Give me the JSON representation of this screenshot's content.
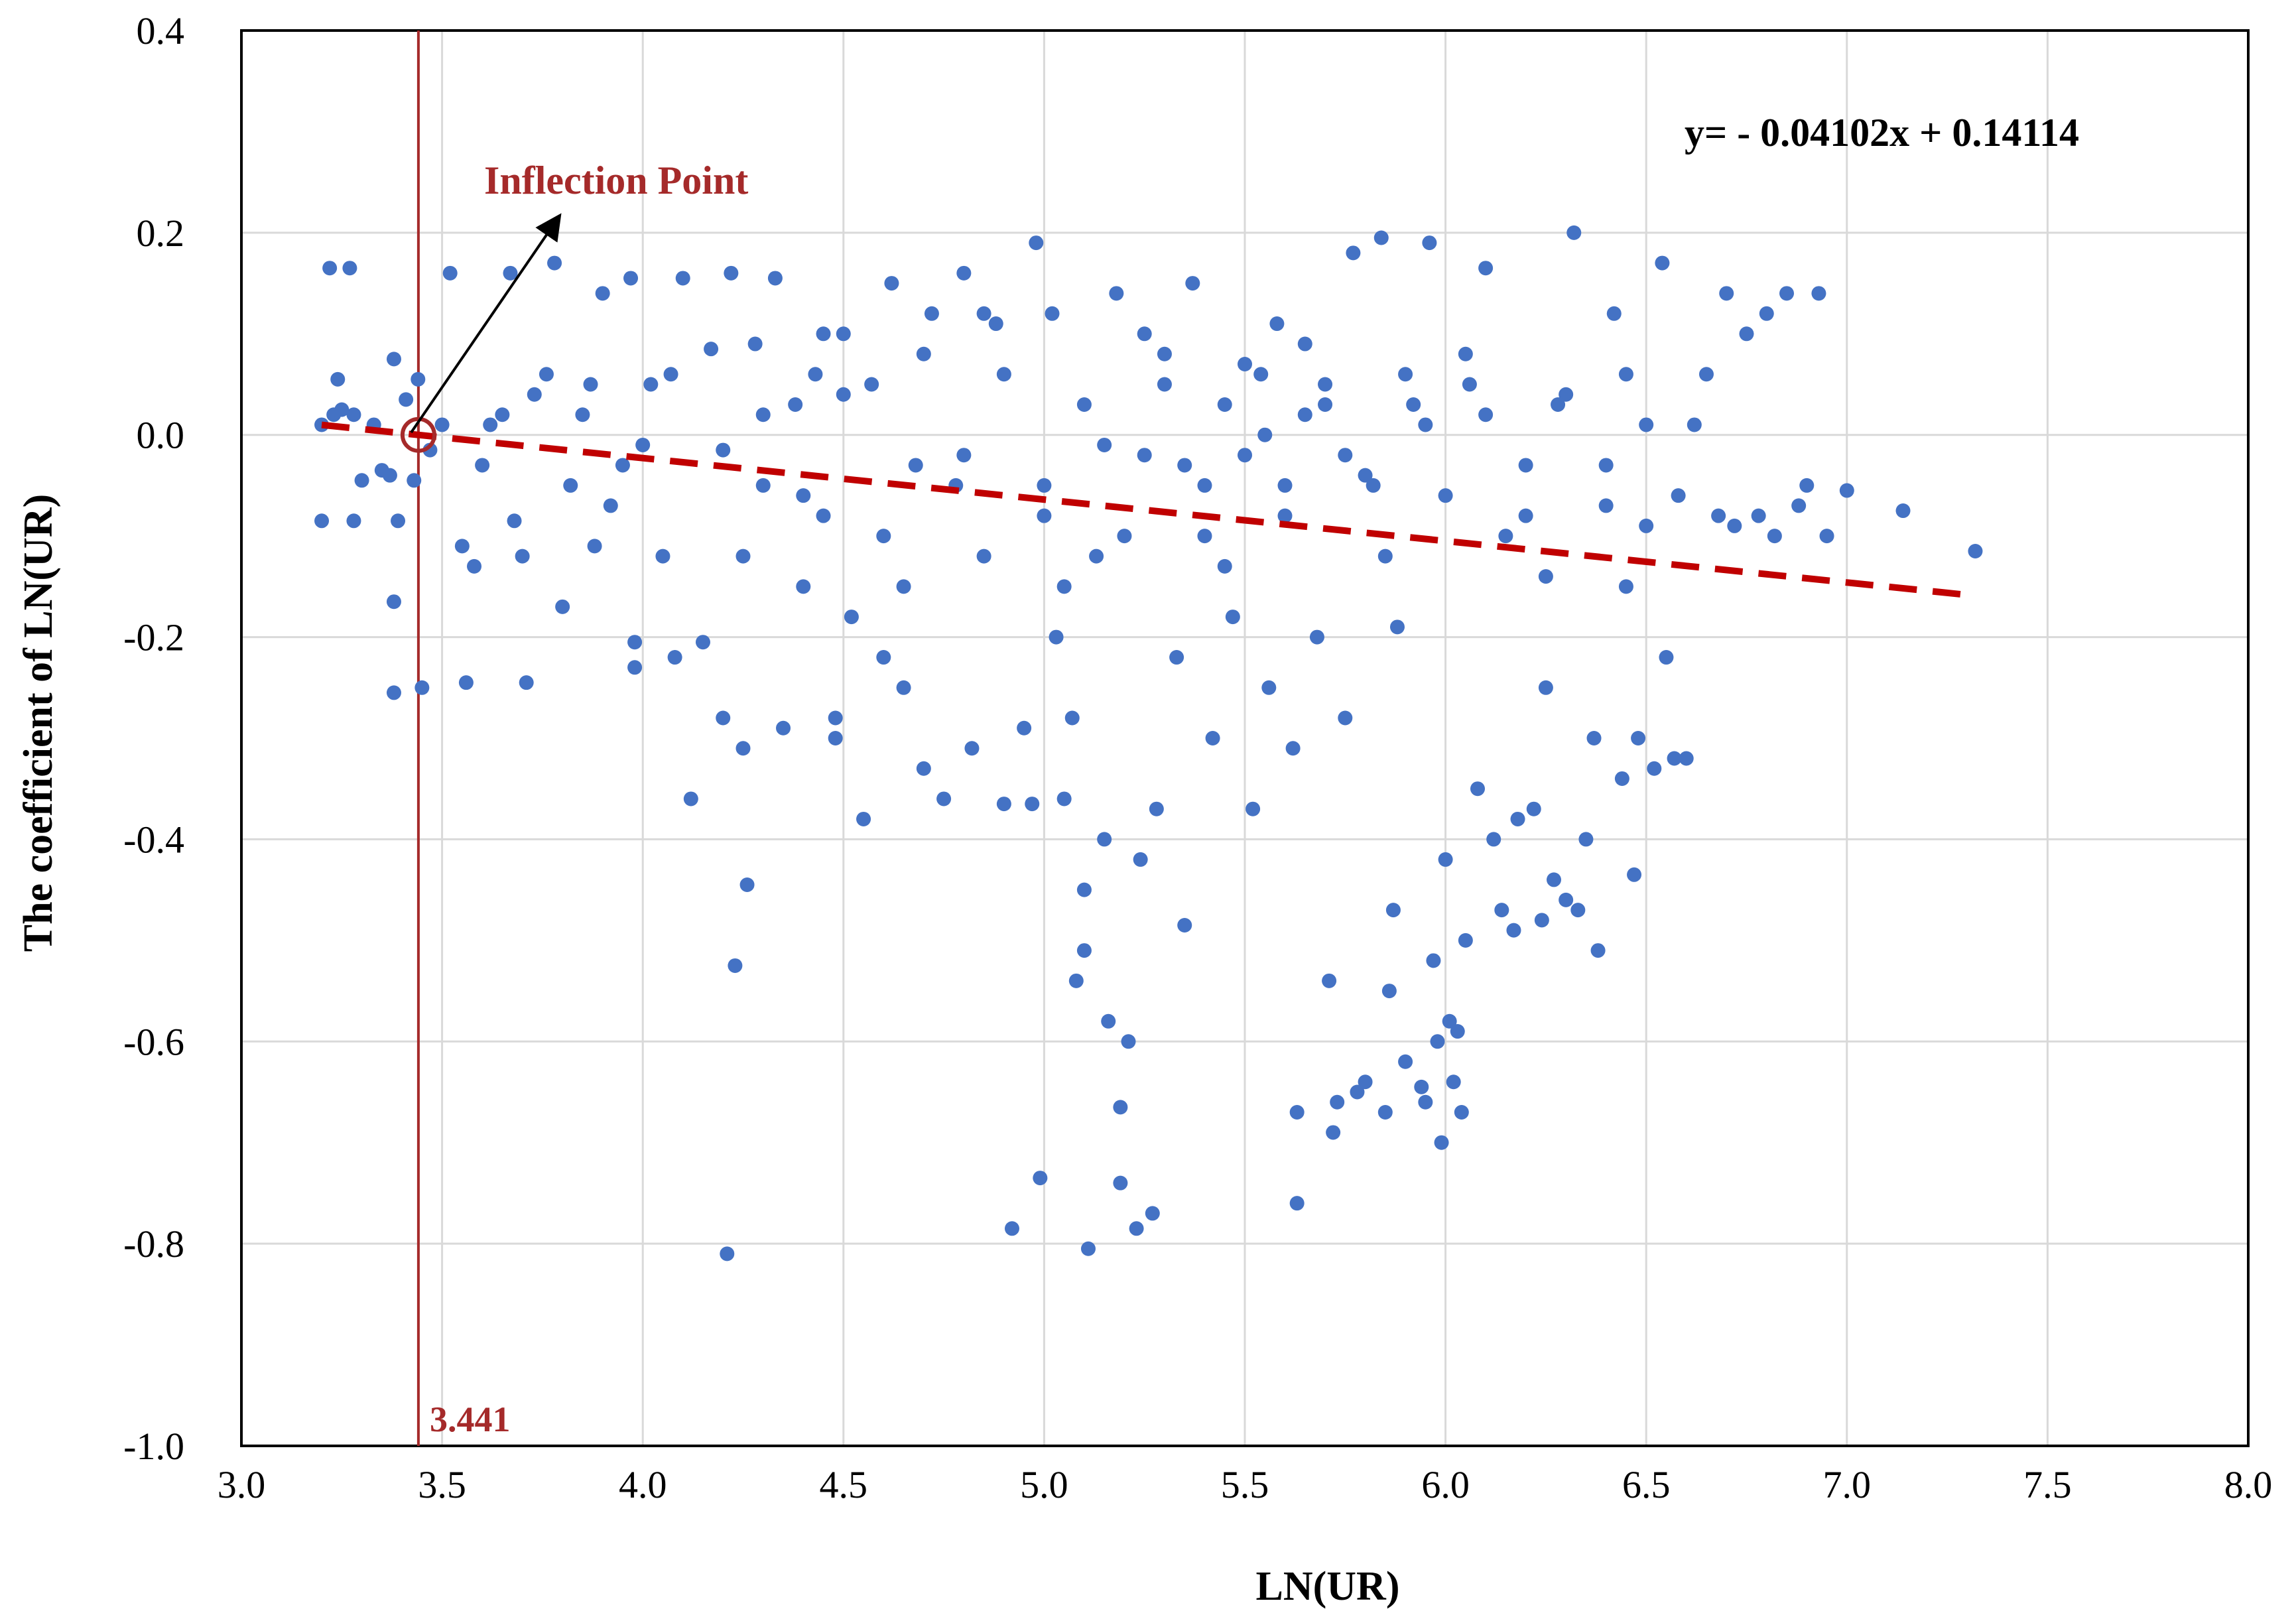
{
  "chart_data": {
    "type": "scatter",
    "xlabel": "LN(UR)",
    "ylabel": "The coefficient of LN(UR)",
    "xlim": [
      3.0,
      8.0
    ],
    "ylim": [
      -1.0,
      0.4
    ],
    "x_ticks": [
      "3.0",
      "3.5",
      "4.0",
      "4.5",
      "5.0",
      "5.5",
      "6.0",
      "6.5",
      "7.0",
      "7.5",
      "8.0"
    ],
    "y_ticks": [
      "0.4",
      "0.2",
      "0.0",
      "-0.2",
      "-0.4",
      "-0.6",
      "-0.8",
      "-1.0"
    ],
    "grid": true,
    "equation": "y= - 0.04102x + 0.14114",
    "trendline": {
      "slope": -0.04102,
      "intercept": 0.14114,
      "x_range": [
        3.2,
        7.3
      ],
      "color": "#C00000",
      "style": "dashed"
    },
    "inflection": {
      "label": "Inflection Point",
      "x": 3.441,
      "x_label": "3.441",
      "y": 0.0,
      "color": "#A52A2A"
    },
    "marker_color": "#4472C4",
    "points": [
      [
        3.2,
        0.01
      ],
      [
        3.2,
        -0.085
      ],
      [
        3.22,
        0.165
      ],
      [
        3.23,
        0.02
      ],
      [
        3.24,
        0.055
      ],
      [
        3.25,
        0.025
      ],
      [
        3.27,
        0.165
      ],
      [
        3.28,
        0.02
      ],
      [
        3.28,
        -0.085
      ],
      [
        3.3,
        -0.045
      ],
      [
        3.33,
        0.01
      ],
      [
        3.35,
        -0.035
      ],
      [
        3.37,
        -0.04
      ],
      [
        3.38,
        0.075
      ],
      [
        3.38,
        -0.165
      ],
      [
        3.38,
        -0.255
      ],
      [
        3.39,
        -0.085
      ],
      [
        3.41,
        0.035
      ],
      [
        3.43,
        -0.045
      ],
      [
        3.44,
        0.055
      ],
      [
        3.45,
        -0.25
      ],
      [
        3.47,
        -0.015
      ],
      [
        3.5,
        0.01
      ],
      [
        3.52,
        0.16
      ],
      [
        3.55,
        -0.11
      ],
      [
        3.56,
        -0.245
      ],
      [
        3.58,
        -0.13
      ],
      [
        3.6,
        -0.03
      ],
      [
        3.62,
        0.01
      ],
      [
        3.65,
        0.02
      ],
      [
        3.67,
        0.16
      ],
      [
        3.68,
        -0.085
      ],
      [
        3.7,
        -0.12
      ],
      [
        3.71,
        -0.245
      ],
      [
        3.73,
        0.04
      ],
      [
        3.76,
        0.06
      ],
      [
        3.78,
        0.17
      ],
      [
        3.8,
        -0.17
      ],
      [
        3.82,
        -0.05
      ],
      [
        3.85,
        0.02
      ],
      [
        3.87,
        0.05
      ],
      [
        3.88,
        -0.11
      ],
      [
        3.9,
        0.14
      ],
      [
        3.92,
        -0.07
      ],
      [
        3.95,
        -0.03
      ],
      [
        3.97,
        0.155
      ],
      [
        3.98,
        -0.205
      ],
      [
        3.98,
        -0.23
      ],
      [
        4.0,
        -0.01
      ],
      [
        4.02,
        0.05
      ],
      [
        4.05,
        -0.12
      ],
      [
        4.07,
        0.06
      ],
      [
        4.08,
        -0.22
      ],
      [
        4.1,
        0.155
      ],
      [
        4.12,
        -0.36
      ],
      [
        4.15,
        -0.205
      ],
      [
        4.17,
        0.085
      ],
      [
        4.2,
        -0.015
      ],
      [
        4.2,
        -0.28
      ],
      [
        4.21,
        -0.81
      ],
      [
        4.22,
        0.16
      ],
      [
        4.23,
        -0.525
      ],
      [
        4.25,
        -0.31
      ],
      [
        4.26,
        -0.445
      ],
      [
        4.28,
        0.09
      ],
      [
        4.3,
        -0.05
      ],
      [
        4.33,
        0.155
      ],
      [
        4.35,
        -0.29
      ],
      [
        4.38,
        0.03
      ],
      [
        4.4,
        -0.15
      ],
      [
        4.43,
        0.06
      ],
      [
        4.45,
        -0.08
      ],
      [
        4.48,
        -0.28
      ],
      [
        4.48,
        -0.3
      ],
      [
        4.5,
        0.1
      ],
      [
        4.52,
        -0.18
      ],
      [
        4.55,
        -0.38
      ],
      [
        4.57,
        0.05
      ],
      [
        4.6,
        -0.22
      ],
      [
        4.62,
        0.15
      ],
      [
        4.65,
        -0.25
      ],
      [
        4.68,
        -0.03
      ],
      [
        4.7,
        -0.33
      ],
      [
        4.72,
        0.12
      ],
      [
        4.75,
        -0.36
      ],
      [
        4.78,
        -0.05
      ],
      [
        4.8,
        0.16
      ],
      [
        4.82,
        -0.31
      ],
      [
        4.85,
        -0.12
      ],
      [
        4.88,
        0.11
      ],
      [
        4.9,
        -0.365
      ],
      [
        4.92,
        -0.785
      ],
      [
        4.95,
        -0.29
      ],
      [
        4.97,
        -0.365
      ],
      [
        4.98,
        0.19
      ],
      [
        4.99,
        -0.735
      ],
      [
        5.0,
        -0.05
      ],
      [
        5.02,
        0.12
      ],
      [
        5.03,
        -0.2
      ],
      [
        5.05,
        -0.36
      ],
      [
        5.07,
        -0.28
      ],
      [
        5.08,
        -0.54
      ],
      [
        5.1,
        -0.45
      ],
      [
        5.1,
        -0.51
      ],
      [
        5.11,
        -0.805
      ],
      [
        5.13,
        -0.12
      ],
      [
        5.15,
        -0.4
      ],
      [
        5.16,
        -0.58
      ],
      [
        5.18,
        0.14
      ],
      [
        5.19,
        -0.665
      ],
      [
        5.19,
        -0.74
      ],
      [
        5.21,
        -0.6
      ],
      [
        5.23,
        -0.785
      ],
      [
        5.24,
        -0.42
      ],
      [
        5.25,
        -0.02
      ],
      [
        5.27,
        -0.77
      ],
      [
        5.28,
        -0.37
      ],
      [
        5.3,
        0.08
      ],
      [
        5.33,
        -0.22
      ],
      [
        5.35,
        -0.485
      ],
      [
        5.37,
        0.15
      ],
      [
        5.4,
        -0.1
      ],
      [
        5.42,
        -0.3
      ],
      [
        5.45,
        0.03
      ],
      [
        5.47,
        -0.18
      ],
      [
        5.5,
        -0.02
      ],
      [
        5.52,
        -0.37
      ],
      [
        5.54,
        0.06
      ],
      [
        5.56,
        -0.25
      ],
      [
        5.58,
        0.11
      ],
      [
        5.6,
        -0.05
      ],
      [
        5.62,
        -0.31
      ],
      [
        5.63,
        -0.67
      ],
      [
        5.63,
        -0.76
      ],
      [
        5.65,
        0.02
      ],
      [
        5.68,
        -0.2
      ],
      [
        5.7,
        0.05
      ],
      [
        5.71,
        -0.54
      ],
      [
        5.72,
        -0.69
      ],
      [
        5.73,
        -0.66
      ],
      [
        5.75,
        -0.28
      ],
      [
        5.77,
        0.18
      ],
      [
        5.78,
        -0.65
      ],
      [
        5.8,
        -0.64
      ],
      [
        5.82,
        -0.05
      ],
      [
        5.84,
        0.195
      ],
      [
        5.85,
        -0.67
      ],
      [
        5.86,
        -0.55
      ],
      [
        5.87,
        -0.47
      ],
      [
        5.88,
        -0.19
      ],
      [
        5.9,
        -0.62
      ],
      [
        5.92,
        0.03
      ],
      [
        5.94,
        -0.645
      ],
      [
        5.95,
        -0.66
      ],
      [
        5.96,
        0.19
      ],
      [
        5.97,
        -0.52
      ],
      [
        5.98,
        -0.6
      ],
      [
        5.99,
        -0.7
      ],
      [
        6.0,
        -0.42
      ],
      [
        6.01,
        -0.58
      ],
      [
        6.02,
        -0.64
      ],
      [
        6.03,
        -0.59
      ],
      [
        6.04,
        -0.67
      ],
      [
        6.05,
        -0.5
      ],
      [
        6.06,
        0.05
      ],
      [
        6.08,
        -0.35
      ],
      [
        6.1,
        0.165
      ],
      [
        6.12,
        -0.4
      ],
      [
        6.14,
        -0.47
      ],
      [
        6.15,
        -0.1
      ],
      [
        6.17,
        -0.49
      ],
      [
        6.18,
        -0.38
      ],
      [
        6.2,
        -0.03
      ],
      [
        6.22,
        -0.37
      ],
      [
        6.24,
        -0.48
      ],
      [
        6.25,
        -0.25
      ],
      [
        6.27,
        -0.44
      ],
      [
        6.28,
        0.03
      ],
      [
        6.3,
        -0.46
      ],
      [
        6.32,
        0.2
      ],
      [
        6.33,
        -0.47
      ],
      [
        6.35,
        -0.4
      ],
      [
        6.37,
        -0.3
      ],
      [
        6.38,
        -0.51
      ],
      [
        6.4,
        -0.07
      ],
      [
        6.42,
        0.12
      ],
      [
        6.44,
        -0.34
      ],
      [
        6.45,
        -0.15
      ],
      [
        6.47,
        -0.435
      ],
      [
        6.48,
        -0.3
      ],
      [
        6.5,
        0.01
      ],
      [
        6.52,
        -0.33
      ],
      [
        6.54,
        0.17
      ],
      [
        6.55,
        -0.22
      ],
      [
        6.57,
        -0.32
      ],
      [
        6.58,
        -0.06
      ],
      [
        6.6,
        -0.32
      ],
      [
        6.62,
        0.01
      ],
      [
        6.65,
        0.06
      ],
      [
        6.68,
        -0.08
      ],
      [
        6.7,
        0.14
      ],
      [
        6.72,
        -0.09
      ],
      [
        6.75,
        0.1
      ],
      [
        6.78,
        -0.08
      ],
      [
        6.8,
        0.12
      ],
      [
        6.82,
        -0.1
      ],
      [
        6.85,
        0.14
      ],
      [
        6.88,
        -0.07
      ],
      [
        6.9,
        -0.05
      ],
      [
        6.93,
        0.14
      ],
      [
        6.95,
        -0.1
      ],
      [
        7.0,
        -0.055
      ],
      [
        7.14,
        -0.075
      ],
      [
        7.32,
        -0.115
      ],
      [
        4.3,
        0.02
      ],
      [
        4.4,
        -0.06
      ],
      [
        4.5,
        0.04
      ],
      [
        4.6,
        -0.1
      ],
      [
        4.7,
        0.08
      ],
      [
        4.8,
        -0.02
      ],
      [
        4.9,
        0.06
      ],
      [
        5.0,
        -0.08
      ],
      [
        5.1,
        0.03
      ],
      [
        5.2,
        -0.1
      ],
      [
        5.3,
        0.05
      ],
      [
        5.4,
        -0.05
      ],
      [
        5.5,
        0.07
      ],
      [
        5.6,
        -0.08
      ],
      [
        5.7,
        0.03
      ],
      [
        5.8,
        -0.04
      ],
      [
        5.9,
        0.06
      ],
      [
        6.0,
        -0.06
      ],
      [
        6.1,
        0.02
      ],
      [
        6.2,
        -0.08
      ],
      [
        6.3,
        0.04
      ],
      [
        6.4,
        -0.03
      ],
      [
        6.5,
        -0.09
      ],
      [
        4.25,
        -0.12
      ],
      [
        4.45,
        0.1
      ],
      [
        4.65,
        -0.15
      ],
      [
        4.85,
        0.12
      ],
      [
        5.05,
        -0.15
      ],
      [
        5.25,
        0.1
      ],
      [
        5.45,
        -0.13
      ],
      [
        5.65,
        0.09
      ],
      [
        5.85,
        -0.12
      ],
      [
        6.05,
        0.08
      ],
      [
        6.25,
        -0.14
      ],
      [
        6.45,
        0.06
      ],
      [
        5.55,
        0.0
      ],
      [
        5.75,
        -0.02
      ],
      [
        5.95,
        0.01
      ],
      [
        5.35,
        -0.03
      ],
      [
        5.15,
        -0.01
      ]
    ]
  }
}
